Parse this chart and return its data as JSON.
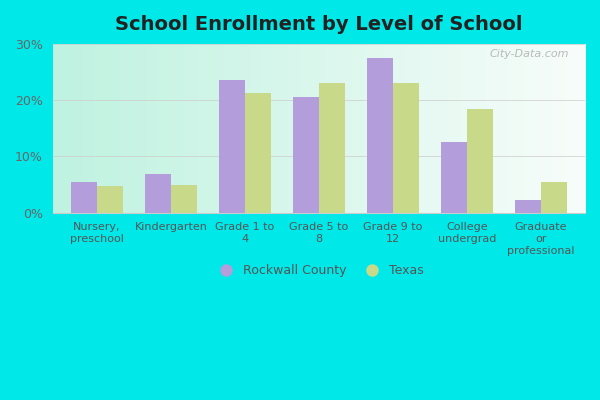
{
  "title": "School Enrollment by Level of School",
  "categories": [
    "Nursery,\npreschool",
    "Kindergarten",
    "Grade 1 to\n4",
    "Grade 5 to\n8",
    "Grade 9 to\n12",
    "College\nundergrad",
    "Graduate\nor\nprofessional"
  ],
  "rockwall_values": [
    5.5,
    6.8,
    23.5,
    20.5,
    27.5,
    12.5,
    2.2
  ],
  "texas_values": [
    4.8,
    5.0,
    21.2,
    23.0,
    23.0,
    18.5,
    5.5
  ],
  "rockwall_color": "#b39ddb",
  "texas_color": "#c8d98a",
  "background_top_left": "#c2f0e0",
  "background_bottom_right": "#f0faf8",
  "outer_background": "#00e8e8",
  "ylim": [
    0,
    30
  ],
  "yticks": [
    0,
    10,
    20,
    30
  ],
  "ytick_labels": [
    "0%",
    "10%",
    "20%",
    "30%"
  ],
  "legend_rockwall": "Rockwall County",
  "legend_texas": "Texas",
  "watermark": "City-Data.com",
  "bar_width": 0.35
}
